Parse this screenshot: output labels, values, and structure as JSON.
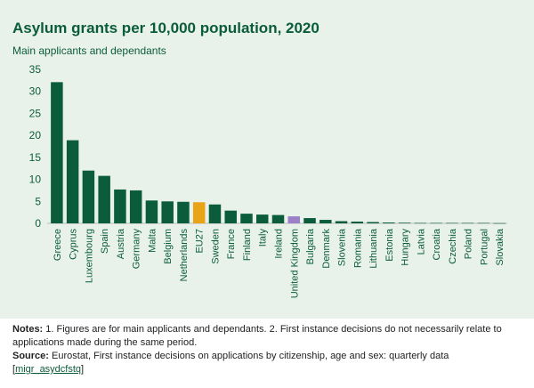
{
  "chart_data": {
    "type": "bar",
    "title": "Asylum grants per 10,000 population, 2020",
    "subtitle": "Main applicants and dependants",
    "ylim": [
      0,
      35
    ],
    "yticks": [
      0,
      5,
      10,
      15,
      20,
      25,
      30,
      35
    ],
    "grid": false,
    "categories": [
      "Greece",
      "Cyprus",
      "Luxembourg",
      "Spain",
      "Austria",
      "Germany",
      "Malta",
      "Belgium",
      "Netherlands",
      "EU27",
      "Sweden",
      "France",
      "Finland",
      "Italy",
      "Ireland",
      "United Kingdom",
      "Bulgaria",
      "Denmark",
      "Slovenia",
      "Romania",
      "Lithuania",
      "Estonia",
      "Hungary",
      "Latvia",
      "Croatia",
      "Czechia",
      "Poland",
      "Portugal",
      "Slovakia"
    ],
    "values": [
      32.1,
      18.9,
      12.0,
      10.8,
      7.7,
      7.5,
      5.2,
      5.0,
      4.9,
      4.8,
      4.3,
      2.9,
      2.2,
      2.0,
      1.9,
      1.6,
      1.2,
      0.8,
      0.5,
      0.4,
      0.3,
      0.2,
      0.15,
      0.1,
      0.1,
      0.1,
      0.1,
      0.1,
      0.05
    ],
    "colors": {
      "default": "#0b5c3a",
      "EU27": "#e8a316",
      "United Kingdom": "#9b7fc8",
      "text": "#0b5c3a",
      "panel": "#e9f2ea"
    }
  },
  "notes": {
    "notes_label": "Notes:",
    "notes_text": " 1. Figures are for main applicants and dependants. 2. First instance decisions do not necessarily relate to applications made during the same period.",
    "source_label": "Source:",
    "source_text": " Eurostat, First instance decisions on applications by citizenship, age and sex: quarterly data",
    "link_open": "[",
    "link_text": "migr_asydcfstq",
    "link_close": "]"
  }
}
